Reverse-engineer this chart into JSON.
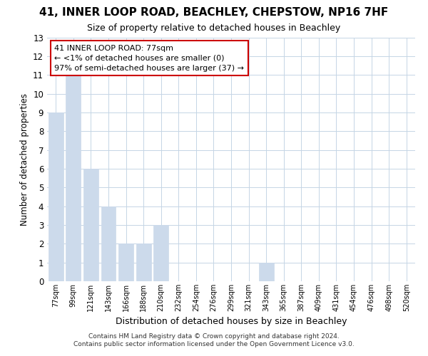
{
  "title": "41, INNER LOOP ROAD, BEACHLEY, CHEPSTOW, NP16 7HF",
  "subtitle": "Size of property relative to detached houses in Beachley",
  "xlabel": "Distribution of detached houses by size in Beachley",
  "ylabel": "Number of detached properties",
  "categories": [
    "77sqm",
    "99sqm",
    "121sqm",
    "143sqm",
    "166sqm",
    "188sqm",
    "210sqm",
    "232sqm",
    "254sqm",
    "276sqm",
    "299sqm",
    "321sqm",
    "343sqm",
    "365sqm",
    "387sqm",
    "409sqm",
    "431sqm",
    "454sqm",
    "476sqm",
    "498sqm",
    "520sqm"
  ],
  "values": [
    9,
    11,
    6,
    4,
    2,
    2,
    3,
    0,
    0,
    0,
    0,
    0,
    1,
    0,
    0,
    0,
    0,
    0,
    0,
    0,
    0
  ],
  "bar_color": "#ccdaeb",
  "ylim": [
    0,
    13
  ],
  "yticks": [
    0,
    1,
    2,
    3,
    4,
    5,
    6,
    7,
    8,
    9,
    10,
    11,
    12,
    13
  ],
  "annotation_title": "41 INNER LOOP ROAD: 77sqm",
  "annotation_line1": "← <1% of detached houses are smaller (0)",
  "annotation_line2": "97% of semi-detached houses are larger (37) →",
  "annotation_box_color": "#ffffff",
  "annotation_border_color": "#cc0000",
  "footer_line1": "Contains HM Land Registry data © Crown copyright and database right 2024.",
  "footer_line2": "Contains public sector information licensed under the Open Government Licence v3.0.",
  "background_color": "#ffffff",
  "grid_color": "#c5d5e5",
  "title_fontsize": 11,
  "subtitle_fontsize": 9
}
